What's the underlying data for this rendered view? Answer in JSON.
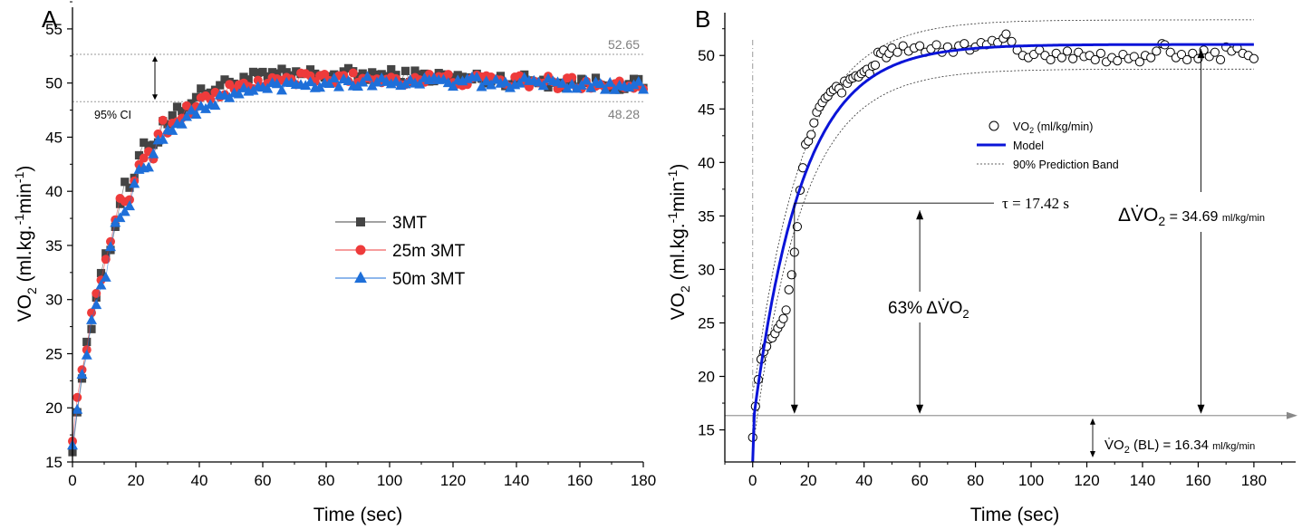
{
  "colors": {
    "s3mt": "#444444",
    "s25": "#ee3b3b",
    "s50": "#1e6fd9",
    "model": "#0a14d8",
    "ref_line": "#9a9a9a",
    "axis": "#000000"
  },
  "chart_data": [
    {
      "id": "A",
      "type": "scatter",
      "panel_label": "A",
      "xlabel": "Time (sec)",
      "ylabel_main": "VO",
      "ylabel_sub": "2",
      "ylabel_units_1": " (ml.kg.",
      "ylabel_sup_1": "-1",
      "ylabel_units_2": "min",
      "ylabel_sup_2": "-1",
      "ylabel_close": ")",
      "xlim": [
        0,
        180
      ],
      "ylim": [
        15,
        57
      ],
      "xticks": [
        0,
        20,
        40,
        60,
        80,
        100,
        120,
        140,
        160,
        180
      ],
      "yticks": [
        15,
        20,
        25,
        30,
        35,
        40,
        45,
        50,
        55
      ],
      "ci_label": "95% CI",
      "ci_upper": "52.65",
      "ci_lower": "48.28",
      "ci_upper_value": 52.65,
      "ci_lower_value": 48.28,
      "legend_position": "center",
      "series": [
        {
          "name": "3MT",
          "marker": "square",
          "color_key": "s3mt",
          "model": {
            "y0": 16.5,
            "amp": 34.8,
            "tau": 15.0,
            "decay_start": 55,
            "decay_rate": 0.012,
            "jitter": 0.6
          }
        },
        {
          "name": "25m 3MT",
          "marker": "circle",
          "color_key": "s25",
          "model": {
            "y0": 17.5,
            "amp": 33.2,
            "tau": 15.5,
            "decay_start": 70,
            "decay_rate": 0.008,
            "jitter": 0.6
          }
        },
        {
          "name": "50m 3MT",
          "marker": "triangle",
          "color_key": "s50",
          "model": {
            "y0": 17.0,
            "amp": 33.3,
            "tau": 16.0,
            "decay_start": 80,
            "decay_rate": 0.005,
            "jitter": 0.5
          }
        }
      ]
    },
    {
      "id": "B",
      "type": "scatter",
      "panel_label": "B",
      "xlabel": "Time (sec)",
      "ylabel_main": "VO",
      "ylabel_sub": "2",
      "ylabel_units_1": " (ml.kg.",
      "ylabel_sup_1": "-1",
      "ylabel_units_2": "min",
      "ylabel_sup_2": "-1",
      "ylabel_close": ")",
      "xlim": [
        -10,
        195
      ],
      "ylim": [
        12,
        54
      ],
      "xticks": [
        0,
        20,
        40,
        60,
        80,
        100,
        120,
        140,
        160,
        180
      ],
      "yticks": [
        15,
        20,
        25,
        30,
        35,
        40,
        45,
        50
      ],
      "legend": {
        "observed": "VO",
        "observed_sub": "2",
        "observed_units": " (ml/kg/min)",
        "model": "Model",
        "band": "90% Prediction Band"
      },
      "legend_position": "center-right",
      "model_params": {
        "baseline": 16.34,
        "delta": 34.69,
        "tau": 17.42,
        "td": 0.5
      },
      "band_halfwidth": 2.3,
      "tau_label": "τ = 17.42 s",
      "tau_time": 15,
      "tau_value": 36.2,
      "delta_label_pre": "Δ",
      "delta_label_main": "V̇O",
      "delta_label_sub": "2",
      "delta_label_eq": " = 34.69 ",
      "delta_label_units": "ml/kg/min",
      "pct_label": "63% Δ",
      "pct_label_vo": "V̇O",
      "pct_label_sub": "2",
      "bl_label_pre": "V̇O",
      "bl_label_sub": "2",
      "bl_label_mid": " (BL) = 16.34 ",
      "bl_label_units": "ml/kg/min",
      "baseline_value": 16.34,
      "observed_points": [
        [
          0,
          14.3
        ],
        [
          1,
          17.2
        ],
        [
          2,
          19.7
        ],
        [
          3,
          21.6
        ],
        [
          4,
          22.3
        ],
        [
          5,
          22.8
        ],
        [
          6,
          23.5
        ],
        [
          7,
          23.6
        ],
        [
          8,
          24.0
        ],
        [
          9,
          24.5
        ],
        [
          10,
          24.9
        ],
        [
          11,
          25.4
        ],
        [
          12,
          26.2
        ],
        [
          13,
          28.1
        ],
        [
          14,
          29.5
        ],
        [
          15,
          31.6
        ],
        [
          16,
          34.0
        ],
        [
          17,
          37.4
        ],
        [
          18,
          39.5
        ],
        [
          19,
          41.7
        ],
        [
          20,
          42.0
        ],
        [
          21,
          42.6
        ],
        [
          22,
          43.7
        ],
        [
          23,
          44.7
        ],
        [
          24,
          45.2
        ],
        [
          25,
          45.6
        ],
        [
          26,
          46.0
        ],
        [
          27,
          46.2
        ],
        [
          28,
          46.6
        ],
        [
          29,
          46.8
        ],
        [
          30,
          47.1
        ],
        [
          31,
          46.9
        ],
        [
          32,
          46.5
        ],
        [
          33,
          47.6
        ],
        [
          34,
          47.4
        ],
        [
          35,
          47.8
        ],
        [
          36,
          47.9
        ],
        [
          37,
          48.1
        ],
        [
          38,
          48.0
        ],
        [
          39,
          48.3
        ],
        [
          40,
          48.5
        ],
        [
          41,
          48.7
        ],
        [
          42,
          48.3
        ],
        [
          43,
          49.0
        ],
        [
          44,
          49.1
        ],
        [
          45,
          50.3
        ],
        [
          46,
          50.2
        ],
        [
          47,
          50.5
        ],
        [
          48,
          49.8
        ],
        [
          49,
          50.2
        ],
        [
          50,
          50.7
        ],
        [
          52,
          50.3
        ],
        [
          54,
          50.9
        ],
        [
          56,
          50.4
        ],
        [
          58,
          50.7
        ],
        [
          60,
          50.9
        ],
        [
          62,
          50.3
        ],
        [
          64,
          50.6
        ],
        [
          66,
          51.0
        ],
        [
          68,
          50.3
        ],
        [
          70,
          50.8
        ],
        [
          72,
          50.3
        ],
        [
          74,
          50.9
        ],
        [
          76,
          51.1
        ],
        [
          78,
          50.5
        ],
        [
          80,
          50.8
        ],
        [
          82,
          51.2
        ],
        [
          84,
          51.0
        ],
        [
          86,
          51.4
        ],
        [
          88,
          51.2
        ],
        [
          90,
          51.6
        ],
        [
          91,
          52.0
        ],
        [
          93,
          51.3
        ],
        [
          95,
          50.5
        ],
        [
          97,
          50.0
        ],
        [
          99,
          49.8
        ],
        [
          101,
          50.1
        ],
        [
          103,
          50.5
        ],
        [
          105,
          50.0
        ],
        [
          107,
          49.6
        ],
        [
          109,
          50.2
        ],
        [
          111,
          49.8
        ],
        [
          113,
          50.4
        ],
        [
          115,
          49.7
        ],
        [
          117,
          50.3
        ],
        [
          119,
          49.9
        ],
        [
          121,
          50.0
        ],
        [
          123,
          49.6
        ],
        [
          125,
          50.2
        ],
        [
          127,
          49.4
        ],
        [
          129,
          49.8
        ],
        [
          131,
          49.5
        ],
        [
          133,
          50.1
        ],
        [
          135,
          49.7
        ],
        [
          137,
          49.9
        ],
        [
          139,
          49.4
        ],
        [
          141,
          50.0
        ],
        [
          143,
          49.8
        ],
        [
          145,
          50.4
        ],
        [
          147,
          51.1
        ],
        [
          148,
          51.0
        ],
        [
          150,
          50.3
        ],
        [
          152,
          49.8
        ],
        [
          154,
          50.1
        ],
        [
          156,
          49.6
        ],
        [
          158,
          50.2
        ],
        [
          160,
          49.7
        ],
        [
          162,
          50.5
        ],
        [
          164,
          49.9
        ],
        [
          166,
          50.3
        ],
        [
          168,
          49.6
        ],
        [
          170,
          50.8
        ],
        [
          172,
          50.4
        ],
        [
          174,
          50.7
        ],
        [
          176,
          50.2
        ],
        [
          178,
          50.0
        ],
        [
          180,
          49.7
        ]
      ]
    }
  ]
}
